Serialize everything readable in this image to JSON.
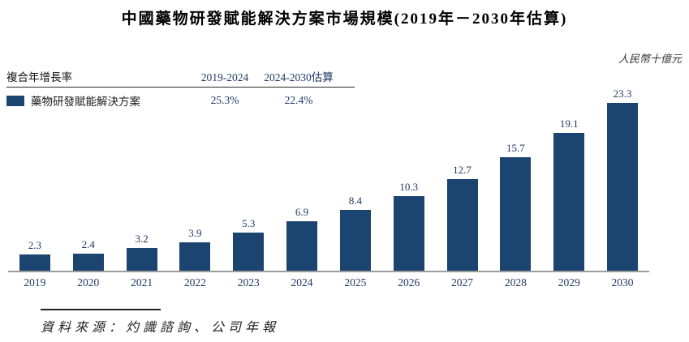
{
  "title": "中國藥物研發賦能解決方案市場規模(2019年－2030年估算)",
  "unit_label": "人民幣十億元",
  "legend": {
    "header_label": "複合年增長率",
    "col1_header": "2019-2024",
    "col2_header": "2024-2030估算",
    "series_label": "藥物研發賦能解決方案",
    "col1_value": "25.3%",
    "col2_value": "22.4%",
    "swatch_color": "#1B4470"
  },
  "chart_data": {
    "type": "bar",
    "title": "中國藥物研發賦能解決方案市場規模(2019年－2030年估算)",
    "ylabel": "人民幣十億元",
    "categories": [
      "2019",
      "2020",
      "2021",
      "2022",
      "2023",
      "2024",
      "2025",
      "2026",
      "2027",
      "2028",
      "2029",
      "2030"
    ],
    "values": [
      2.3,
      2.4,
      3.2,
      3.9,
      5.3,
      6.9,
      8.4,
      10.3,
      12.7,
      15.7,
      19.1,
      23.3
    ],
    "series_name": "藥物研發賦能解決方案",
    "ylim": [
      0,
      25
    ],
    "grid": false,
    "legend_position": "top-left",
    "bar_color": "#1B4470",
    "axis_color": "#9c9c9c",
    "cagr": [
      {
        "period": "2019-2024",
        "value": "25.3%"
      },
      {
        "period": "2024-2030估算",
        "value": "22.4%"
      }
    ]
  },
  "source": "資料來源：灼識諮詢、公司年報"
}
